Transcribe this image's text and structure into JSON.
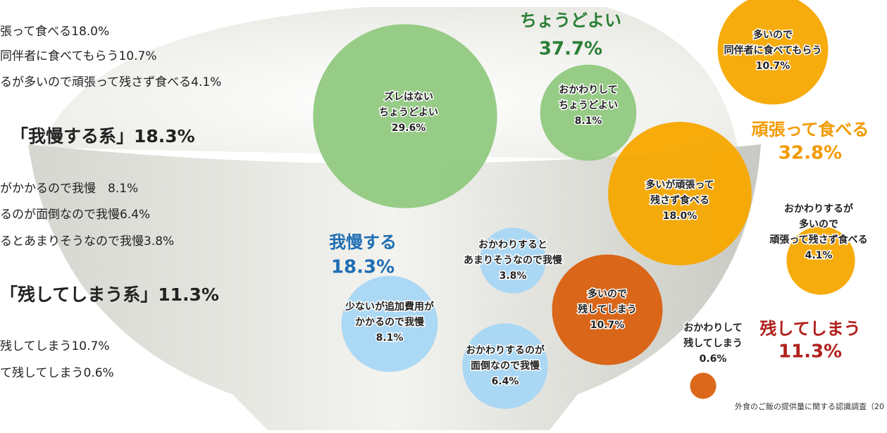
{
  "chart_data": {
    "type": "bubble",
    "left_text": [
      {
        "text": "張って食べる18.0%",
        "bold": false
      },
      {
        "text": "同伴者に食べてもらう10.7%",
        "bold": false
      },
      {
        "text": "るが多いので頑張って残さず食べる4.1%",
        "bold": false
      },
      {
        "text": "「我慢する系」18.3%",
        "bold": true
      },
      {
        "text": "がかかるので我慢　8.1%",
        "bold": false
      },
      {
        "text": "るのが面倒なので我慢6.4%",
        "bold": false
      },
      {
        "text": "るとあまりそうなので我慢3.8%",
        "bold": false
      },
      {
        "text": "「残してしまう系」11.3%",
        "bold": true
      },
      {
        "text": "残してしまう10.7%",
        "bold": false
      },
      {
        "text": "て残してしまう0.6%",
        "bold": false
      }
    ],
    "groups": [
      {
        "name": "ちょうどよい",
        "total": "37.7%",
        "label_color": "#2a7f36",
        "bubble_color": "#90c97f",
        "bubbles": [
          {
            "lines": [
              "ズレはない",
              "ちょうどよい"
            ],
            "value": 29.6,
            "value_label": "29.6%"
          },
          {
            "lines": [
              "おかわりして",
              "ちょうどよい"
            ],
            "value": 8.1,
            "value_label": "8.1%"
          }
        ]
      },
      {
        "name": "頑張って食べる",
        "total": "32.8%",
        "label_color": "#f39a00",
        "bubble_color": "#f7a800",
        "bubbles": [
          {
            "lines": [
              "多いので",
              "同伴者に食べてもらう"
            ],
            "value": 10.7,
            "value_label": "10.7%"
          },
          {
            "lines": [
              "多いが頑張って",
              "残さず食べる"
            ],
            "value": 18.0,
            "value_label": "18.0%"
          },
          {
            "lines": [
              "おかわりするが",
              "多いので",
              "頑張って残さず食べる"
            ],
            "value": 4.1,
            "value_label": "4.1%"
          }
        ]
      },
      {
        "name": "我慢する",
        "total": "18.3%",
        "label_color": "#1e6eb4",
        "bubble_color": "#a6d6f4",
        "bubbles": [
          {
            "lines": [
              "少ないが追加費用が",
              "かかるので我慢"
            ],
            "value": 8.1,
            "value_label": "8.1%"
          },
          {
            "lines": [
              "おかわりするのが",
              "面倒なので我慢"
            ],
            "value": 6.4,
            "value_label": "6.4%"
          },
          {
            "lines": [
              "おかわりすると",
              "あまりそうなので我慢"
            ],
            "value": 3.8,
            "value_label": "3.8%"
          }
        ]
      },
      {
        "name": "残してしまう",
        "total": "11.3%",
        "label_color": "#b0201c",
        "bubble_color": "#d9600f",
        "bubbles": [
          {
            "lines": [
              "多いので",
              "残してしまう"
            ],
            "value": 10.7,
            "value_label": "10.7%"
          },
          {
            "lines": [
              "おかわりして",
              "残してしまう"
            ],
            "value": 0.6,
            "value_label": "0.6%"
          }
        ]
      }
    ],
    "footnote": "外食のご飯の提供量に関する認識調査（20"
  }
}
